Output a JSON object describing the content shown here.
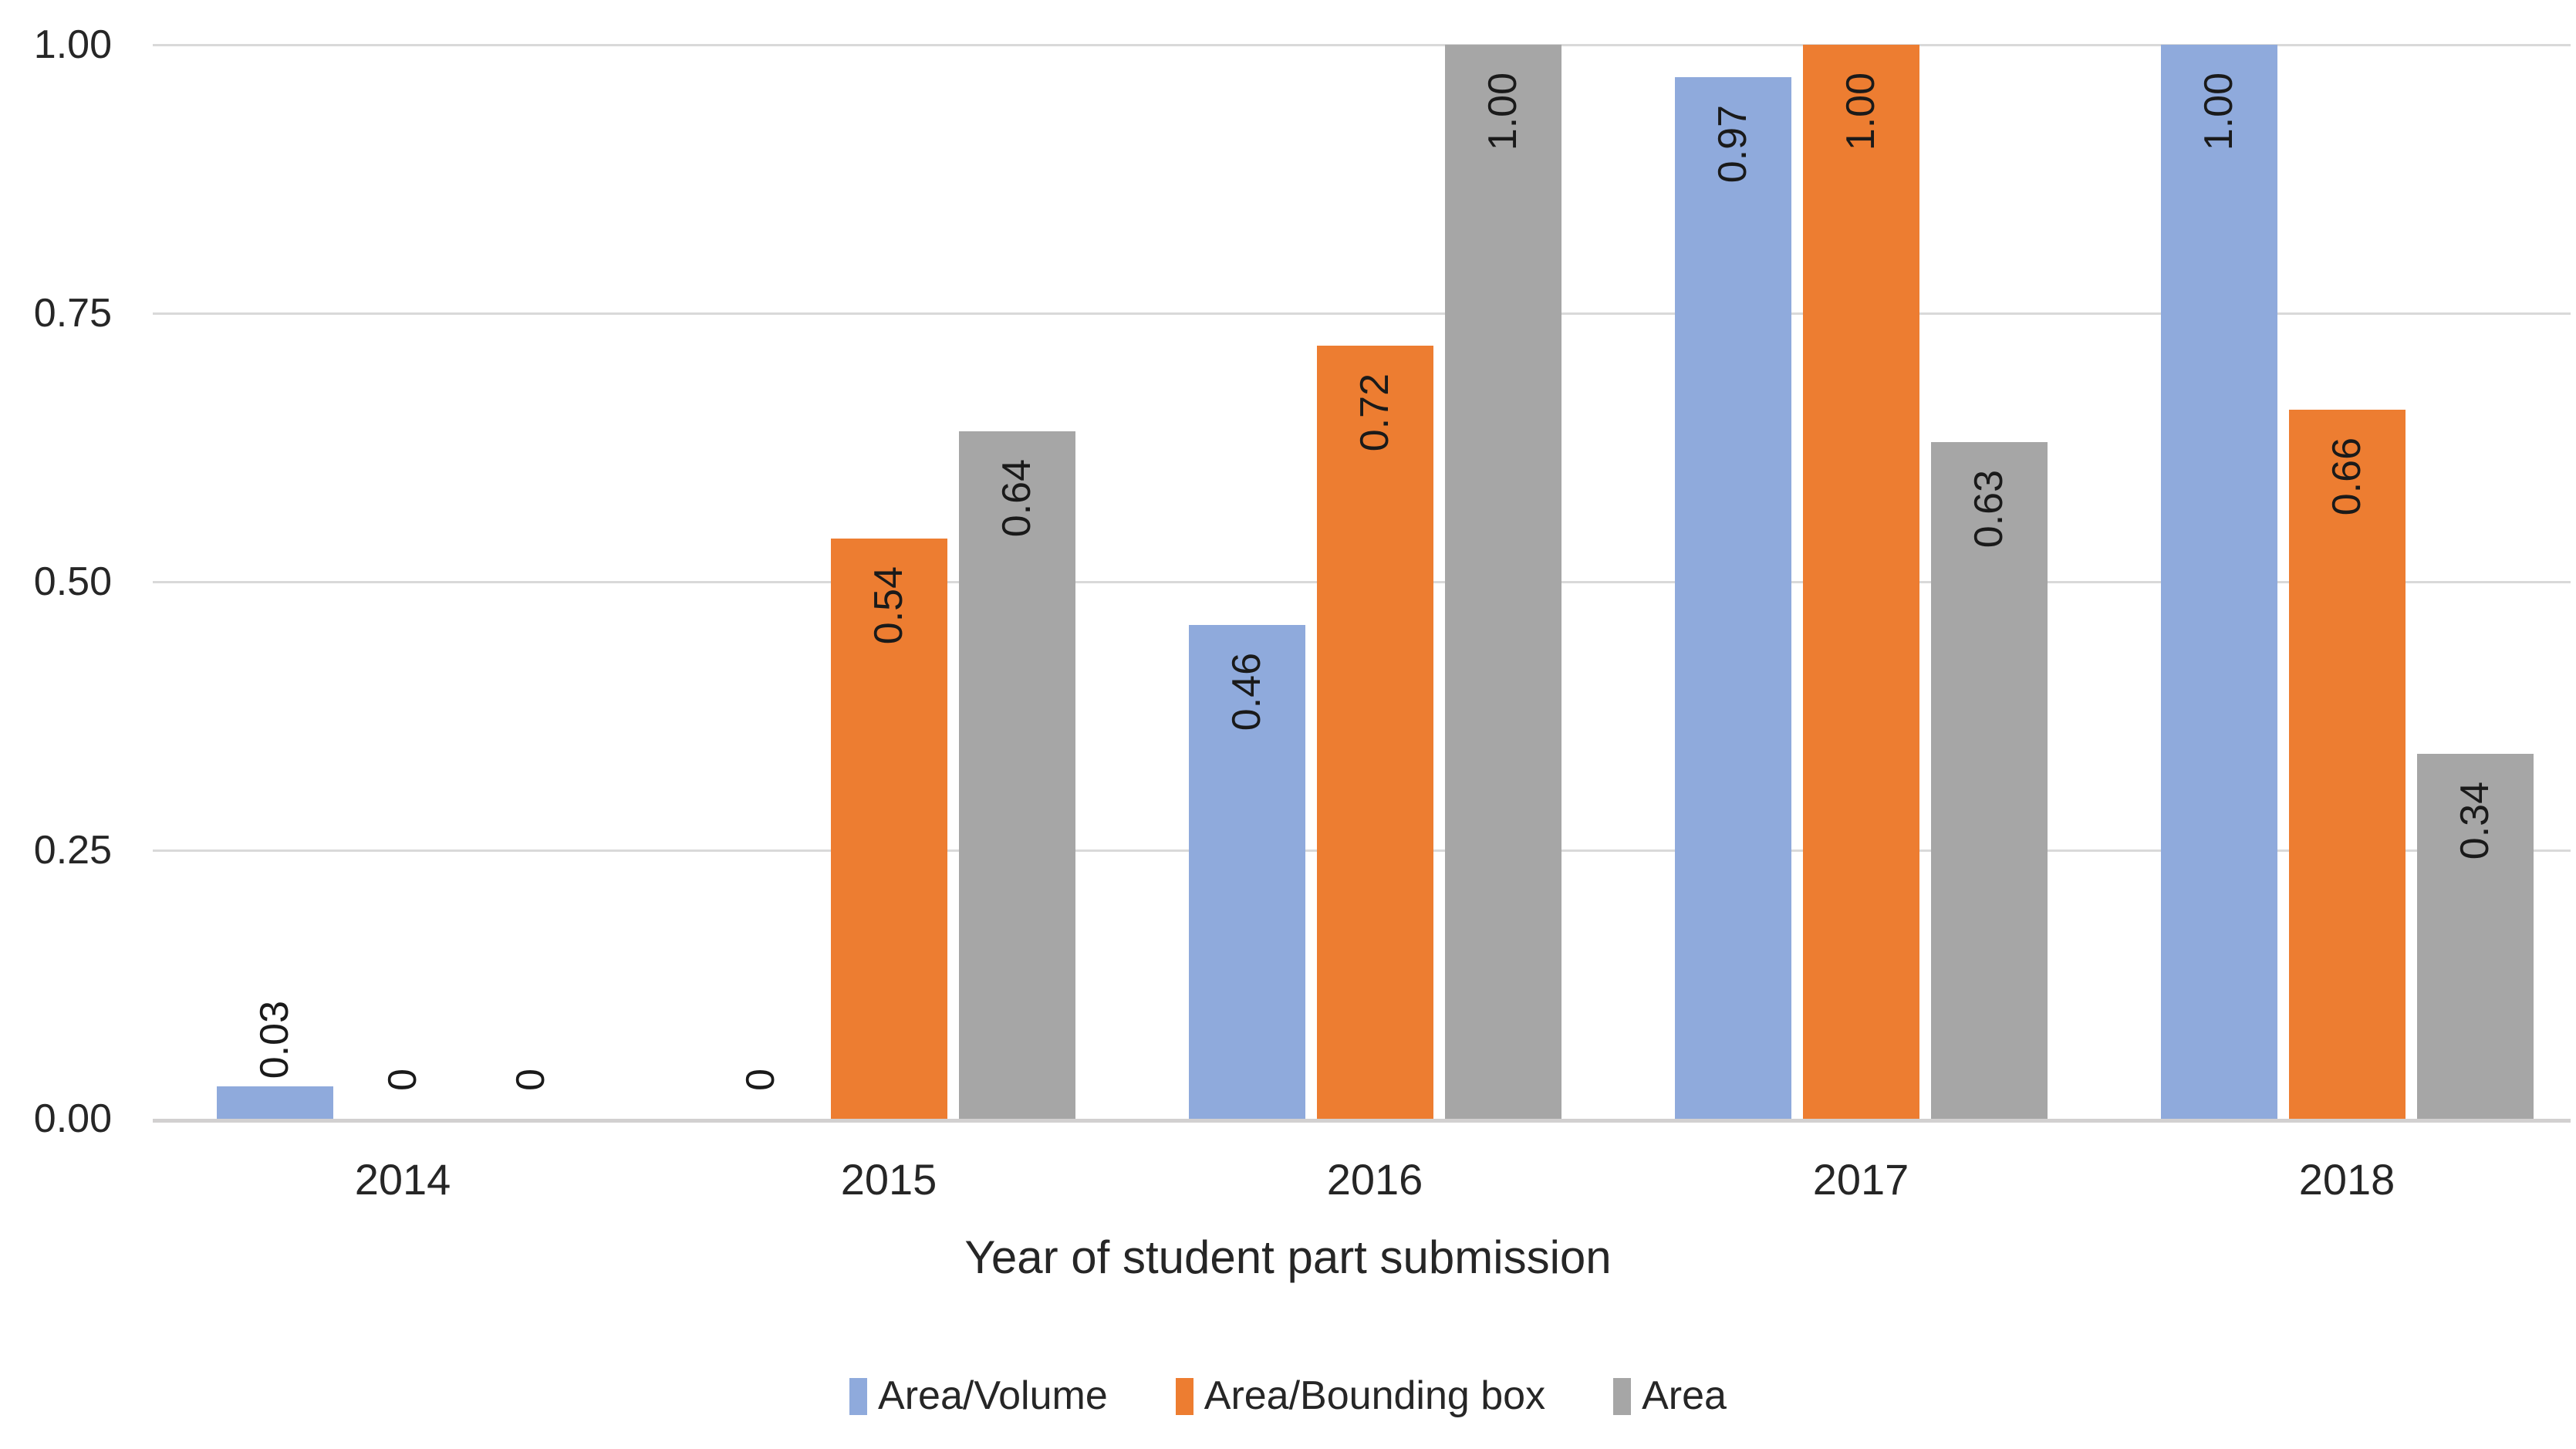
{
  "chart_data": {
    "type": "bar",
    "title": "",
    "xlabel": "Year of student part submission",
    "ylabel": "",
    "categories": [
      "2014",
      "2015",
      "2016",
      "2017",
      "2018"
    ],
    "series": [
      {
        "name": "Area/Volume",
        "color": "#8FAADC",
        "values": [
          0.03,
          0,
          0.46,
          0.97,
          1.0
        ],
        "labels": [
          "0.03",
          "0",
          "0.46",
          "0.97",
          "1.00"
        ]
      },
      {
        "name": "Area/Bounding box",
        "color": "#ED7D31",
        "values": [
          0,
          0.54,
          0.72,
          1.0,
          0.66
        ],
        "labels": [
          "0",
          "0.54",
          "0.72",
          "1.00",
          "0.66"
        ]
      },
      {
        "name": "Area",
        "color": "#A6A6A6",
        "values": [
          0,
          0.64,
          1.0,
          0.63,
          0.34
        ],
        "labels": [
          "0",
          "0.64",
          "1.00",
          "0.63",
          "0.34"
        ]
      }
    ],
    "yticks": [
      "0.00",
      "0.25",
      "0.50",
      "0.75",
      "1.00"
    ],
    "ylim": [
      0,
      1
    ],
    "grid": true,
    "legend_position": "bottom",
    "data_label_rotation": "vertical-bottom-to-top",
    "layout_colors": {
      "gridline": "#D9D9D9",
      "axis_line": "#D2D0D0",
      "tick_text": "#262626",
      "label_text": "#1A1A1A",
      "background": "#FFFFFF"
    }
  }
}
